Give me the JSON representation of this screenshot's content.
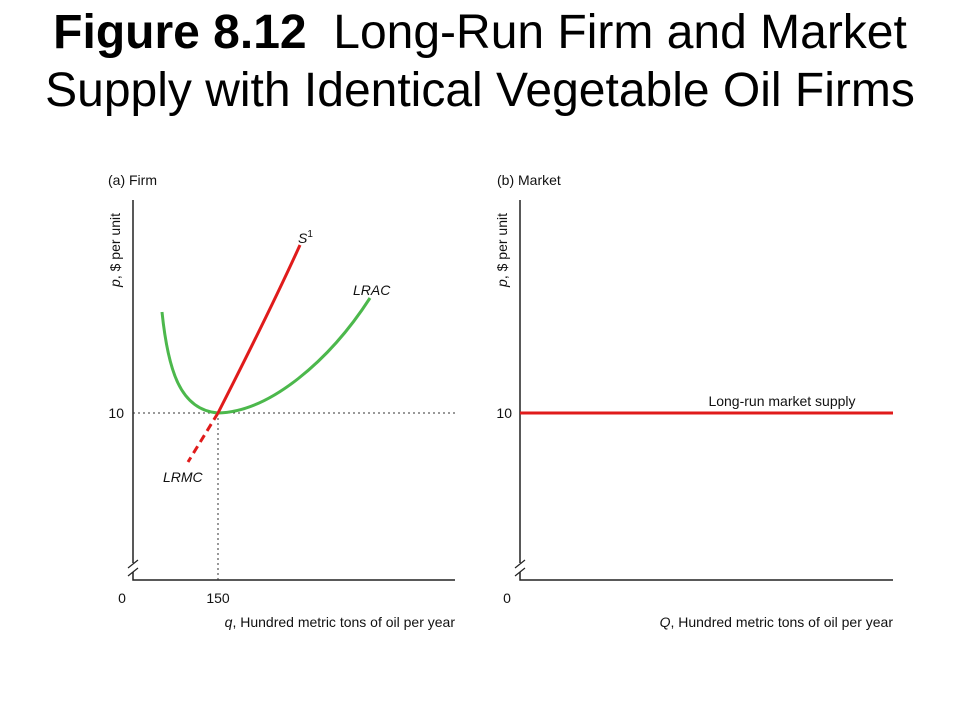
{
  "title": {
    "figure": "Figure 8.12",
    "text": "Long-Run Firm and Market Supply with Identical Vegetable Oil Firms"
  },
  "panels": [
    {
      "label": "(a) Firm",
      "y_symbol": "p",
      "y_text": ", $ per unit",
      "x_symbol": "q",
      "x_text": ", Hundred metric tons of oil per year",
      "origin": "0",
      "y_tick": "10",
      "x_tick": "150",
      "curves": {
        "supply_symbol": "S",
        "supply_index": "1",
        "lrac": "LRAC",
        "lrmc": "LRMC"
      }
    },
    {
      "label": "(b) Market",
      "y_symbol": "p",
      "y_text": ", $ per unit",
      "x_symbol": "Q",
      "x_text": ", Hundred metric tons of oil per year",
      "origin": "0",
      "y_tick": "10",
      "curves": {
        "supply": "Long-run market supply"
      }
    }
  ]
}
